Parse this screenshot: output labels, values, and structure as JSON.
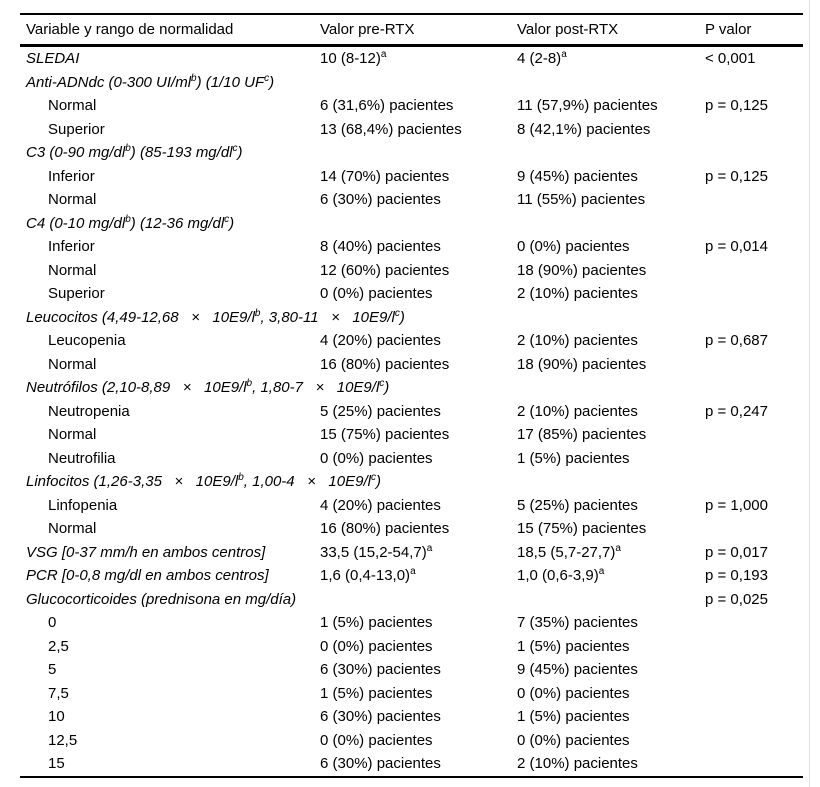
{
  "colors": {
    "background": "#ffffff",
    "text": "#000000",
    "rule": "#000000",
    "page_edge": "#e2e2e2"
  },
  "table": {
    "headers": [
      "Variable y rango de normalidad",
      "Valor pre-RTX",
      "Valor post-RTX",
      "P valor"
    ],
    "rows": [
      {
        "type": "category",
        "label": "SLEDAI",
        "pre": [
          {
            "t": "10 (8-12)"
          },
          {
            "t": "a",
            "sup": true
          }
        ],
        "post": [
          {
            "t": "4 (2-8)"
          },
          {
            "t": "a",
            "sup": true
          }
        ],
        "p": "< 0,001"
      },
      {
        "type": "category",
        "label": [
          {
            "t": "Anti-ADNdc (0-300 UI/ml"
          },
          {
            "t": "b",
            "sup": true
          },
          {
            "t": ") (1/10 UF"
          },
          {
            "t": "c",
            "sup": true
          },
          {
            "t": ")"
          }
        ]
      },
      {
        "type": "sub",
        "label": "Normal",
        "pre": "6 (31,6%) pacientes",
        "post": "11 (57,9%) pacientes",
        "p": "p = 0,125"
      },
      {
        "type": "sub",
        "label": "Superior",
        "pre": "13 (68,4%) pacientes",
        "post": "8 (42,1%) pacientes"
      },
      {
        "type": "category",
        "label": [
          {
            "t": "C3 (0-90 mg/dl"
          },
          {
            "t": "b",
            "sup": true
          },
          {
            "t": ") (85-193 mg/dl"
          },
          {
            "t": "c",
            "sup": true
          },
          {
            "t": ")"
          }
        ]
      },
      {
        "type": "sub",
        "label": "Inferior",
        "pre": "14 (70%) pacientes",
        "post": "9 (45%) pacientes",
        "p": "p = 0,125"
      },
      {
        "type": "sub",
        "label": "Normal",
        "pre": "6 (30%) pacientes",
        "post": "11 (55%) pacientes"
      },
      {
        "type": "category",
        "label": [
          {
            "t": "C4 (0-10 mg/dl"
          },
          {
            "t": "b",
            "sup": true
          },
          {
            "t": ") (12-36 mg/dl"
          },
          {
            "t": "c",
            "sup": true
          },
          {
            "t": ")"
          }
        ]
      },
      {
        "type": "sub",
        "label": "Inferior",
        "pre": "8 (40%) pacientes",
        "post": "0 (0%) pacientes",
        "p": "p = 0,014"
      },
      {
        "type": "sub",
        "label": "Normal",
        "pre": "12 (60%) pacientes",
        "post": "18 (90%) pacientes"
      },
      {
        "type": "sub",
        "label": "Superior",
        "pre": "0 (0%) pacientes",
        "post": "2 (10%) pacientes"
      },
      {
        "type": "category",
        "label": [
          {
            "t": "Leucocitos (4,49-12,68   ×   10E9/l"
          },
          {
            "t": "b",
            "sup": true
          },
          {
            "t": ", 3,80-11   ×   10E9/l"
          },
          {
            "t": "c",
            "sup": true
          },
          {
            "t": ")"
          }
        ]
      },
      {
        "type": "sub",
        "label": "Leucopenia",
        "pre": "4 (20%) pacientes",
        "post": "2 (10%) pacientes",
        "p": "p = 0,687"
      },
      {
        "type": "sub",
        "label": "Normal",
        "pre": "16 (80%) pacientes",
        "post": "18 (90%) pacientes"
      },
      {
        "type": "category",
        "label": [
          {
            "t": "Neutrófilos (2,10-8,89   ×   10E9/l"
          },
          {
            "t": "b",
            "sup": true
          },
          {
            "t": ", 1,80-7   ×   10E9/l"
          },
          {
            "t": "c",
            "sup": true
          },
          {
            "t": ")"
          }
        ]
      },
      {
        "type": "sub",
        "label": "Neutropenia",
        "pre": "5 (25%) pacientes",
        "post": "2 (10%) pacientes",
        "p": "p = 0,247"
      },
      {
        "type": "sub",
        "label": "Normal",
        "pre": "15 (75%) pacientes",
        "post": "17 (85%) pacientes"
      },
      {
        "type": "sub",
        "label": "Neutrofilia",
        "pre": "0 (0%) pacientes",
        "post": "1 (5%) pacientes"
      },
      {
        "type": "category",
        "label": [
          {
            "t": "Linfocitos (1,26-3,35   ×   10E9/l"
          },
          {
            "t": "b",
            "sup": true
          },
          {
            "t": ", 1,00-4   ×   10E9/l"
          },
          {
            "t": "c",
            "sup": true
          },
          {
            "t": ")"
          }
        ]
      },
      {
        "type": "sub",
        "label": "Linfopenia",
        "pre": "4 (20%) pacientes",
        "post": "5 (25%) pacientes",
        "p": "p = 1,000"
      },
      {
        "type": "sub",
        "label": "Normal",
        "pre": "16 (80%) pacientes",
        "post": "15 (75%) pacientes"
      },
      {
        "type": "category",
        "label": "VSG [0-37 mm/h en ambos centros]",
        "pre": [
          {
            "t": "33,5 (15,2-54,7)"
          },
          {
            "t": "a",
            "sup": true
          }
        ],
        "post": [
          {
            "t": "18,5 (5,7-27,7)"
          },
          {
            "t": "a",
            "sup": true
          }
        ],
        "p": "p = 0,017"
      },
      {
        "type": "category",
        "label": "PCR [0-0,8 mg/dl en ambos centros]",
        "pre": [
          {
            "t": "1,6 (0,4-13,0)"
          },
          {
            "t": "a",
            "sup": true
          }
        ],
        "post": [
          {
            "t": "1,0 (0,6-3,9)"
          },
          {
            "t": "a",
            "sup": true
          }
        ],
        "p": "p = 0,193"
      },
      {
        "type": "category",
        "label": "Glucocorticoides (prednisona en mg/día)",
        "p": "p = 0,025"
      },
      {
        "type": "sub",
        "label": "0",
        "pre": "1 (5%) pacientes",
        "post": "7 (35%) pacientes"
      },
      {
        "type": "sub",
        "label": "2,5",
        "pre": "0 (0%) pacientes",
        "post": "1 (5%) pacientes"
      },
      {
        "type": "sub",
        "label": "5",
        "pre": "6 (30%) pacientes",
        "post": "9 (45%) pacientes"
      },
      {
        "type": "sub",
        "label": "7,5",
        "pre": "1 (5%) pacientes",
        "post": "0 (0%) pacientes"
      },
      {
        "type": "sub",
        "label": "10",
        "pre": "6 (30%) pacientes",
        "post": "1 (5%) pacientes"
      },
      {
        "type": "sub",
        "label": "12,5",
        "pre": "0 (0%) pacientes",
        "post": "0 (0%) pacientes"
      },
      {
        "type": "sub",
        "label": "15",
        "pre": "6 (30%) pacientes",
        "post": "2 (10%) pacientes"
      }
    ]
  }
}
